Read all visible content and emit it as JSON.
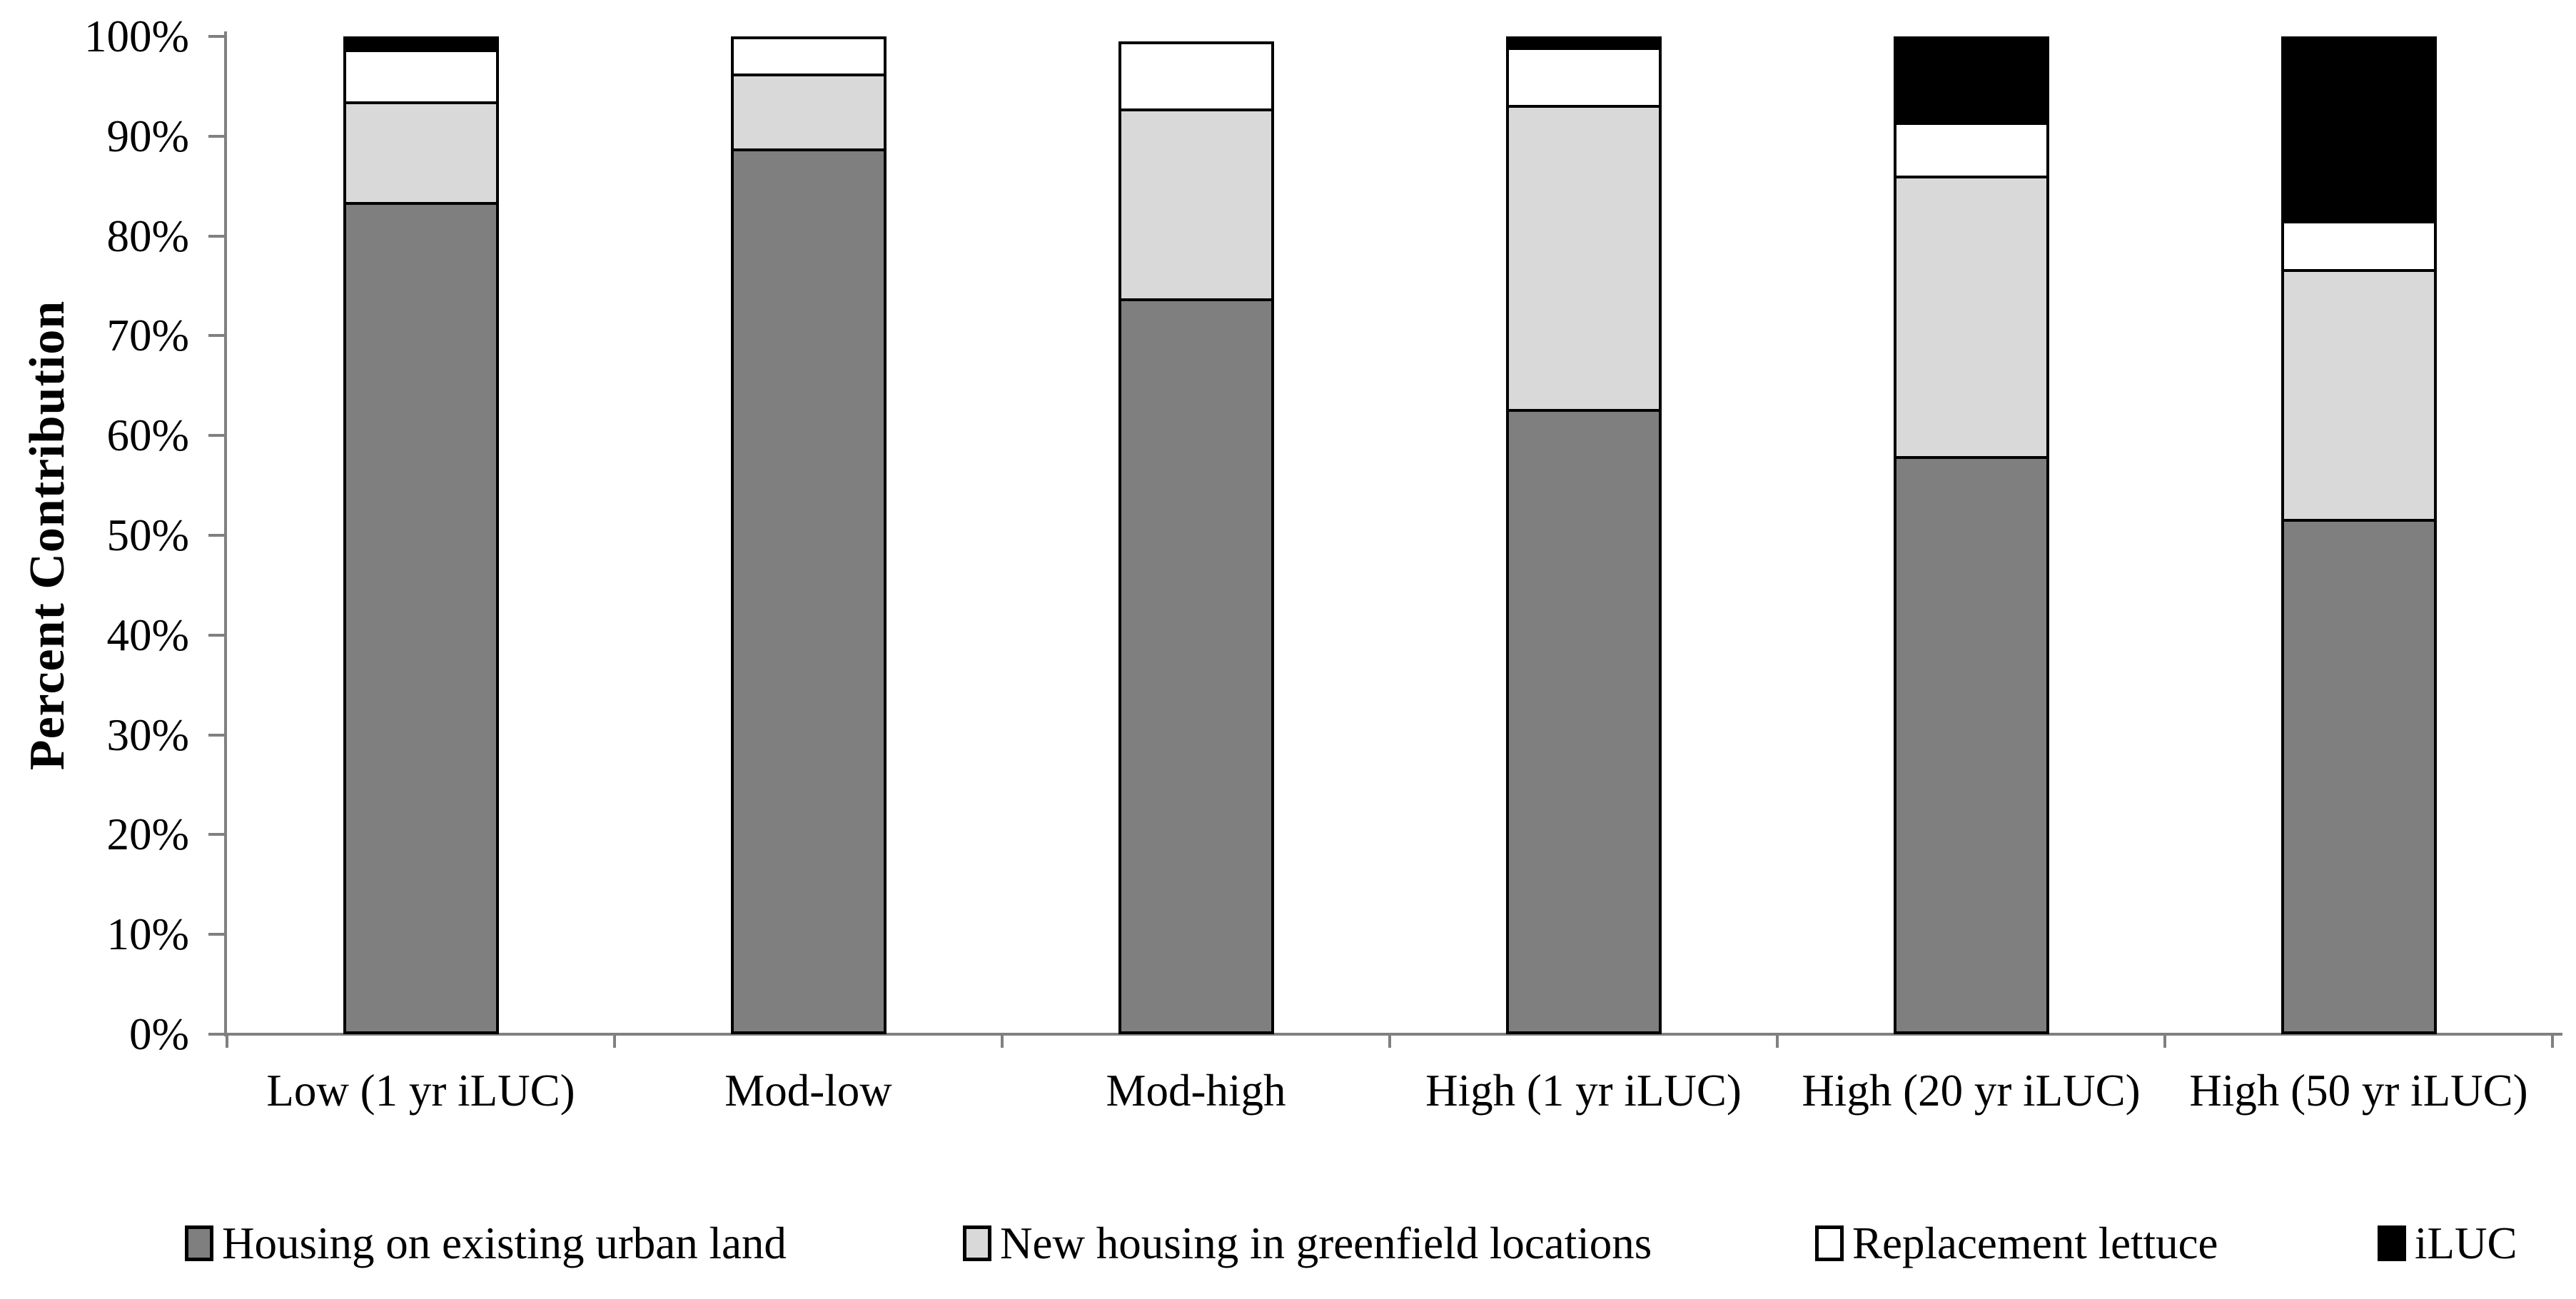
{
  "chart_data": {
    "type": "bar",
    "stacked": true,
    "title": "",
    "xlabel": "",
    "ylabel": "Percent Contribution",
    "ylim": [
      0,
      100
    ],
    "y_tick_step": 10,
    "y_tick_labels": [
      "0%",
      "10%",
      "20%",
      "30%",
      "40%",
      "50%",
      "60%",
      "70%",
      "80%",
      "90%",
      "100%"
    ],
    "grid": false,
    "legend_position": "bottom",
    "categories": [
      "Low (1 yr iLUC)",
      "Mod-low",
      "Mod-high",
      "High (1 yr iLUC)",
      "High (20 yr iLUC)",
      "High (50 yr iLUC)"
    ],
    "series": [
      {
        "name": "Housing on existing urban land",
        "color": "#7f7f7f",
        "values": [
          84,
          89.2,
          74,
          63,
          58.2,
          51.8
        ]
      },
      {
        "name": "New housing in greenfield locations",
        "color": "#d9d9d9",
        "values": [
          10,
          7.3,
          19,
          30.6,
          28.2,
          25.1
        ]
      },
      {
        "name": "Replacement lettuce",
        "color": "#ffffff",
        "values": [
          5,
          3.5,
          6.5,
          5.6,
          5.2,
          4.7
        ]
      },
      {
        "name": "iLUC",
        "color": "#000000",
        "values": [
          1,
          0,
          0,
          0.8,
          8.4,
          18.4
        ]
      }
    ],
    "axis_color": "#808080",
    "bar_border_color": "#000000"
  }
}
